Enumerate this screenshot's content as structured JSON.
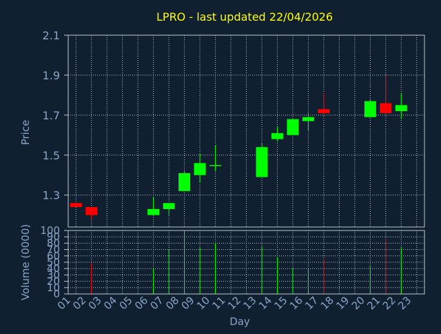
{
  "title": "LPRO - last updated 22/04/2026",
  "colors": {
    "background": "#102030",
    "plot_border": "#c0c8d0",
    "grid": "#c0c8d0",
    "title": "#ffff00",
    "axis_text": "#8aa4c8",
    "up": "#00ff00",
    "down": "#ff0000"
  },
  "chart_data": [
    {
      "type": "candlestick",
      "name": "price",
      "ylabel": "Price",
      "ylim": [
        1.14,
        2.1
      ],
      "yticks": [
        1.3,
        1.5,
        1.7,
        1.9,
        2.1
      ],
      "grid": true,
      "candles": [
        {
          "day": "01",
          "open": 1.26,
          "high": 1.26,
          "low": 1.24,
          "close": 1.24
        },
        {
          "day": "02",
          "open": 1.24,
          "high": 1.24,
          "low": 1.18,
          "close": 1.2
        },
        {
          "day": "06",
          "open": 1.2,
          "high": 1.29,
          "low": 1.2,
          "close": 1.23
        },
        {
          "day": "07",
          "open": 1.23,
          "high": 1.26,
          "low": 1.2,
          "close": 1.26
        },
        {
          "day": "08",
          "open": 1.32,
          "high": 1.42,
          "low": 1.32,
          "close": 1.41
        },
        {
          "day": "09",
          "open": 1.4,
          "high": 1.51,
          "low": 1.36,
          "close": 1.46
        },
        {
          "day": "10",
          "open": 1.45,
          "high": 1.55,
          "low": 1.42,
          "close": 1.45
        },
        {
          "day": "13",
          "open": 1.39,
          "high": 1.56,
          "low": 1.39,
          "close": 1.54
        },
        {
          "day": "14",
          "open": 1.58,
          "high": 1.64,
          "low": 1.57,
          "close": 1.61
        },
        {
          "day": "15",
          "open": 1.6,
          "high": 1.68,
          "low": 1.6,
          "close": 1.68
        },
        {
          "day": "16",
          "open": 1.67,
          "high": 1.71,
          "low": 1.62,
          "close": 1.69
        },
        {
          "day": "17",
          "open": 1.73,
          "high": 1.81,
          "low": 1.7,
          "close": 1.71
        },
        {
          "day": "20",
          "open": 1.69,
          "high": 1.78,
          "low": 1.69,
          "close": 1.77
        },
        {
          "day": "21",
          "open": 1.76,
          "high": 1.9,
          "low": 1.7,
          "close": 1.71
        },
        {
          "day": "22",
          "open": 1.72,
          "high": 1.81,
          "low": 1.68,
          "close": 1.75
        }
      ]
    },
    {
      "type": "bar",
      "name": "volume",
      "ylabel": "Volume (0000)",
      "ylim": [
        0,
        100
      ],
      "yticks": [
        0,
        10,
        20,
        30,
        40,
        50,
        60,
        70,
        80,
        90,
        100
      ],
      "grid": true,
      "bars": [
        {
          "day": "02",
          "value": 48,
          "direction": "down"
        },
        {
          "day": "06",
          "value": 40,
          "direction": "up"
        },
        {
          "day": "07",
          "value": 70,
          "direction": "up"
        },
        {
          "day": "08",
          "value": 100,
          "direction": "up"
        },
        {
          "day": "09",
          "value": 73,
          "direction": "up"
        },
        {
          "day": "10",
          "value": 80,
          "direction": "up"
        },
        {
          "day": "13",
          "value": 75,
          "direction": "up"
        },
        {
          "day": "14",
          "value": 58,
          "direction": "up"
        },
        {
          "day": "15",
          "value": 40,
          "direction": "up"
        },
        {
          "day": "16",
          "value": 41,
          "direction": "up"
        },
        {
          "day": "17",
          "value": 55,
          "direction": "down"
        },
        {
          "day": "20",
          "value": 45,
          "direction": "up"
        },
        {
          "day": "21",
          "value": 87,
          "direction": "down"
        },
        {
          "day": "22",
          "value": 73,
          "direction": "up"
        }
      ]
    }
  ],
  "x_axis": {
    "xlabel": "Day",
    "categories": [
      "01",
      "02",
      "03",
      "04",
      "05",
      "06",
      "07",
      "08",
      "09",
      "10",
      "11",
      "12",
      "13",
      "14",
      "15",
      "16",
      "17",
      "18",
      "19",
      "20",
      "21",
      "22",
      "23"
    ]
  }
}
